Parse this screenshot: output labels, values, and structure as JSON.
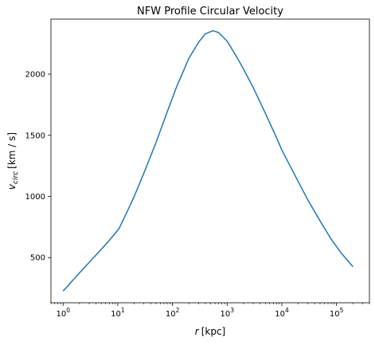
{
  "chart_data": {
    "type": "line",
    "title": "NFW Profile Circular Velocity",
    "xlabel": {
      "symbol": "r",
      "unit": "[kpc]"
    },
    "ylabel": {
      "symbol": "v",
      "subscript": "circ",
      "unit": "[km / s]"
    },
    "xscale": "log",
    "xlim": [
      0.6,
      400000
    ],
    "ylim": [
      130,
      2450
    ],
    "grid": false,
    "legend": "none",
    "xticks": [
      {
        "value": 1,
        "base": "10",
        "exp": "0"
      },
      {
        "value": 10,
        "base": "10",
        "exp": "1"
      },
      {
        "value": 100,
        "base": "10",
        "exp": "2"
      },
      {
        "value": 1000,
        "base": "10",
        "exp": "3"
      },
      {
        "value": 10000,
        "base": "10",
        "exp": "4"
      },
      {
        "value": 100000,
        "base": "10",
        "exp": "5"
      }
    ],
    "yticks": [
      500,
      1000,
      1500,
      2000
    ],
    "yticklabels": [
      "500",
      "1000",
      "1500",
      "2000"
    ],
    "series": [
      {
        "color": "#1f77b4",
        "x": [
          1,
          2,
          4,
          7,
          10.5,
          15,
          20,
          30,
          50,
          80,
          120,
          200,
          300,
          400,
          550,
          700,
          1000,
          1500,
          2000,
          3000,
          5000,
          8000,
          10000,
          20000,
          30000,
          50000,
          80000,
          120000,
          200000
        ],
        "y": [
          225,
          375,
          520,
          640,
          735,
          880,
          1000,
          1190,
          1440,
          1690,
          1900,
          2130,
          2260,
          2330,
          2355,
          2340,
          2270,
          2140,
          2040,
          1890,
          1680,
          1480,
          1380,
          1120,
          970,
          800,
          650,
          540,
          425
        ]
      }
    ]
  }
}
